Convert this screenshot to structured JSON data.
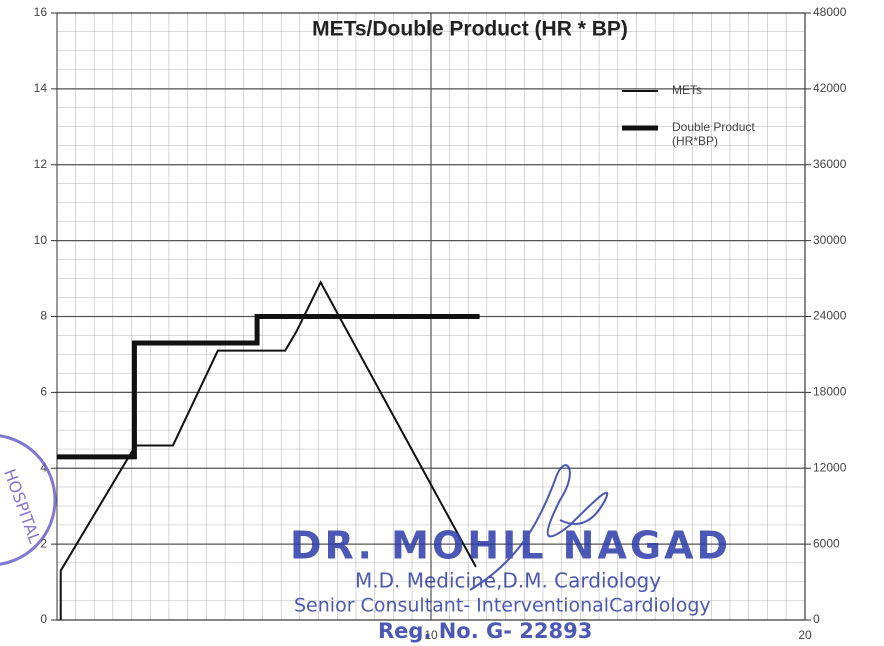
{
  "chart_data": {
    "type": "line",
    "title": "METs/Double Product (HR * BP)",
    "xlim": [
      0,
      20
    ],
    "xticks": [
      10,
      20
    ],
    "ylim": [
      0,
      16
    ],
    "yticks": [
      0,
      2,
      4,
      6,
      8,
      10,
      12,
      14,
      16
    ],
    "y2lim": [
      0,
      48000
    ],
    "y2ticks": [
      0,
      6000,
      12000,
      18000,
      24000,
      30000,
      36000,
      42000,
      48000
    ],
    "grid": true,
    "legend": "upper right",
    "series": [
      {
        "name": "METs",
        "color": "#111111",
        "x": [
          0.1,
          0.1,
          2.1,
          3.1,
          4.3,
          6.1,
          6.4,
          7.05,
          7.6,
          11.2
        ],
        "values": [
          0,
          1.3,
          4.6,
          4.6,
          7.1,
          7.1,
          7.6,
          8.9,
          7.9,
          1.4
        ]
      },
      {
        "name": "Double Product (HR*BP)",
        "color": "#111111",
        "axis": "y2",
        "x": [
          0,
          2.07,
          2.07,
          5.35,
          5.35,
          11.3
        ],
        "values": [
          12900,
          12900,
          21900,
          21900,
          24000,
          24000
        ]
      }
    ]
  },
  "stamp": {
    "name": "DR. MOHIL NAGAD",
    "degree": "M.D. Medicine,D.M. Cardiology",
    "position": "Senior Consultant- InterventionalCardiology",
    "reg": "Reg. No. G- 22893",
    "hospital": "HOSPITAL"
  }
}
